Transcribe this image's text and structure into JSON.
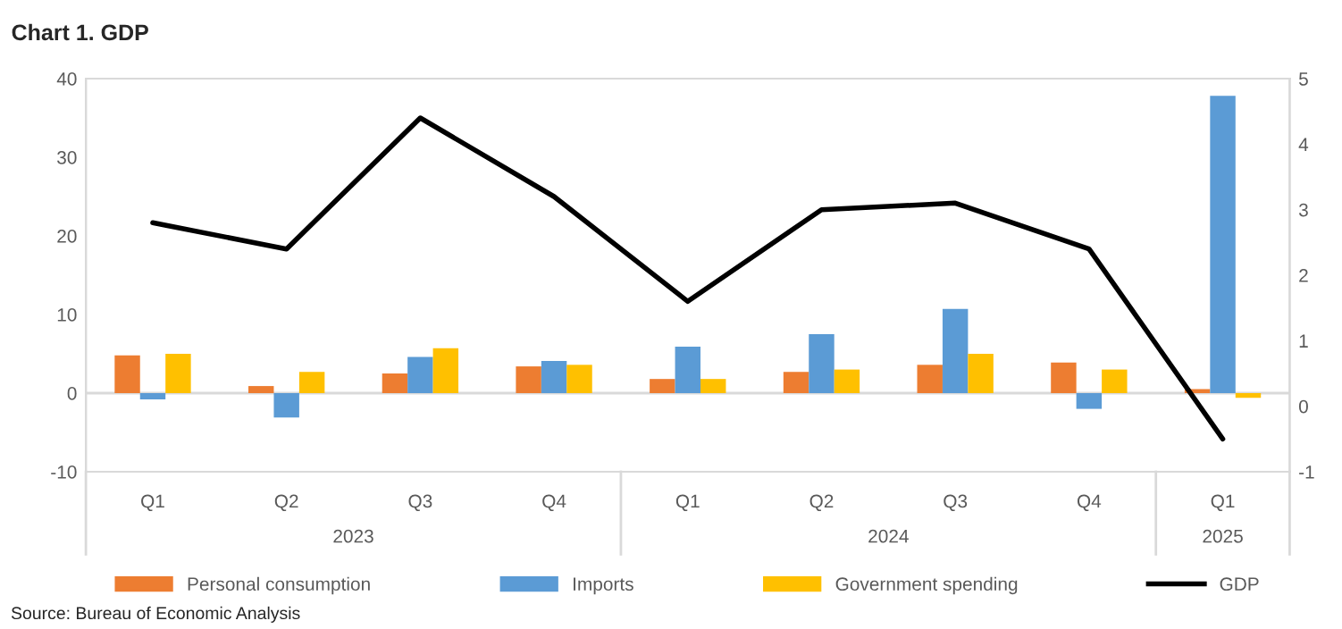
{
  "chart_data": {
    "type": "bar",
    "title": "Chart 1. GDP",
    "categories": [
      "Q1",
      "Q2",
      "Q3",
      "Q4",
      "Q1",
      "Q2",
      "Q3",
      "Q4",
      "Q1"
    ],
    "series": [
      {
        "name": "Personal consumption",
        "color": "#ed7d31",
        "values": [
          4.8,
          0.9,
          2.5,
          3.4,
          1.8,
          2.7,
          3.6,
          3.9,
          0.5
        ]
      },
      {
        "name": "Imports",
        "color": "#5b9bd5",
        "values": [
          -0.8,
          -3.1,
          4.6,
          4.1,
          5.9,
          7.5,
          10.7,
          -2.0,
          37.8
        ]
      },
      {
        "name": "Government spending",
        "color": "#ffc000",
        "values": [
          5.0,
          2.7,
          5.7,
          3.6,
          1.8,
          3.0,
          5.0,
          3.0,
          -0.6
        ]
      },
      {
        "name": "GDP",
        "type": "line",
        "axis": "y2",
        "color": "#000000",
        "values": [
          2.8,
          2.4,
          4.4,
          3.2,
          1.6,
          3.0,
          3.1,
          2.4,
          -0.5
        ]
      }
    ],
    "ylim": [
      -10,
      40
    ],
    "yticks": [
      -10,
      0,
      10,
      20,
      30,
      40
    ],
    "y2lim": [
      -1,
      5
    ],
    "y2ticks": [
      -1,
      0,
      1,
      2,
      3,
      4,
      5
    ],
    "ref_lines": [
      {
        "axis": "y",
        "value": 0,
        "color": "#d9d9d9"
      }
    ],
    "grid": false,
    "legend": "bottom",
    "marker": "none",
    "line_style": "solid",
    "annotations": [
      "2023",
      "2024",
      "2025",
      "Source: Bureau of Economic Analysis"
    ]
  }
}
